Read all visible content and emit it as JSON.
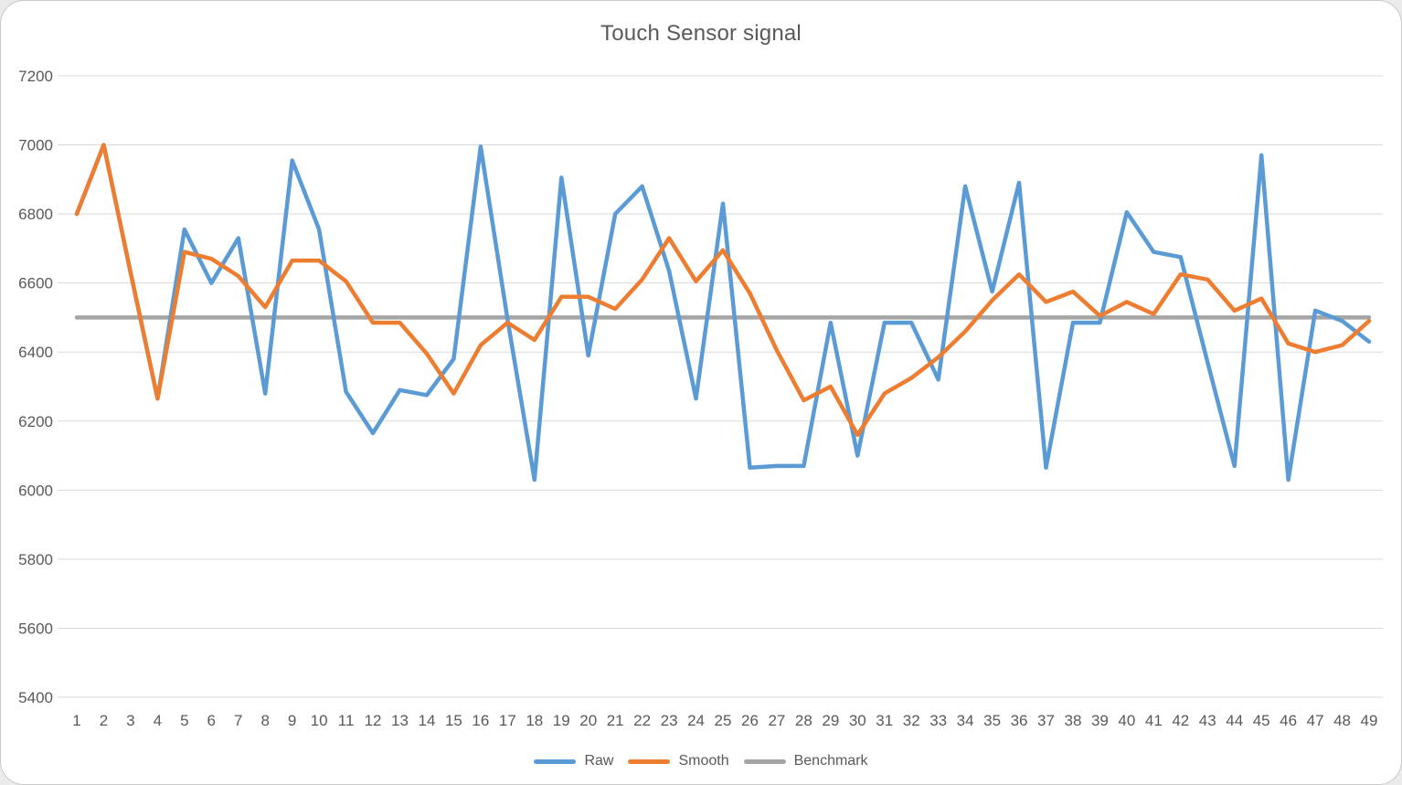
{
  "chart_data": {
    "type": "line",
    "title": "Touch Sensor signal",
    "xlabel": "",
    "ylabel": "",
    "ylim": [
      5400,
      7200
    ],
    "yticks": [
      5400,
      5600,
      5800,
      6000,
      6200,
      6400,
      6600,
      6800,
      7000,
      7200
    ],
    "grid": "horizontal",
    "legend_position": "bottom-center",
    "categories": [
      1,
      2,
      3,
      4,
      5,
      6,
      7,
      8,
      9,
      10,
      11,
      12,
      13,
      14,
      15,
      16,
      17,
      18,
      19,
      20,
      21,
      22,
      23,
      24,
      25,
      26,
      27,
      28,
      29,
      30,
      31,
      32,
      33,
      34,
      35,
      36,
      37,
      38,
      39,
      40,
      41,
      42,
      43,
      44,
      45,
      46,
      47,
      48,
      49
    ],
    "series": [
      {
        "name": "Raw",
        "color": "#5B9BD5",
        "draw_order": 1,
        "values": [
          6800,
          7000,
          6630,
          6265,
          6755,
          6600,
          6730,
          6280,
          6955,
          6755,
          6285,
          6165,
          6290,
          6275,
          6380,
          6995,
          6495,
          6030,
          6905,
          6390,
          6800,
          6880,
          6635,
          6265,
          6830,
          6065,
          6070,
          6070,
          6485,
          6100,
          6485,
          6485,
          6320,
          6880,
          6575,
          6890,
          6065,
          6485,
          6485,
          6805,
          6690,
          6675,
          6370,
          6070,
          6970,
          6030,
          6520,
          6490,
          6430
        ]
      },
      {
        "name": "Smooth",
        "color": "#ED7D31",
        "draw_order": 2,
        "values": [
          6800,
          7000,
          6630,
          6265,
          6690,
          6670,
          6620,
          6530,
          6665,
          6665,
          6605,
          6485,
          6485,
          6395,
          6280,
          6420,
          6485,
          6435,
          6560,
          6560,
          6525,
          6610,
          6730,
          6605,
          6695,
          6570,
          6405,
          6260,
          6300,
          6160,
          6280,
          6325,
          6385,
          6460,
          6550,
          6625,
          6545,
          6575,
          6505,
          6545,
          6510,
          6625,
          6610,
          6520,
          6555,
          6425,
          6400,
          6420,
          6490
        ]
      },
      {
        "name": "Benchmark",
        "color": "#A5A5A5",
        "draw_order": 0,
        "constant": 6500
      }
    ],
    "text_color": "#595959",
    "gridline_color": "#d9d9d9"
  }
}
